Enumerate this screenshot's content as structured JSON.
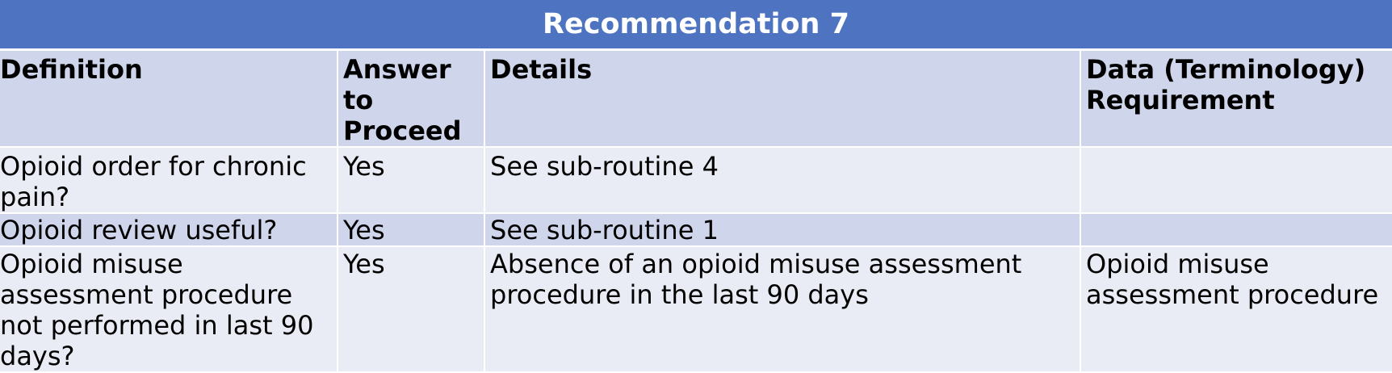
{
  "title": "Recommendation 7",
  "columns": [
    "Definition",
    "Answer to Proceed",
    "Details",
    "Data (Terminology) Requirement"
  ],
  "rows": [
    {
      "definition": "Opioid order for chronic pain?",
      "answer": "Yes",
      "details": "See sub-routine 4",
      "data_requirement": ""
    },
    {
      "definition": "Opioid review useful?",
      "answer": "Yes",
      "details": "See sub-routine 1",
      "data_requirement": ""
    },
    {
      "definition": "Opioid misuse assessment procedure not performed in last 90 days?",
      "answer": "Yes",
      "details": "Absence of an opioid misuse assessment procedure in the last 90 days",
      "data_requirement": "Opioid misuse assessment procedure"
    }
  ],
  "colors": {
    "title_bg": "#4E74C1",
    "header_bg": "#CFD5EA",
    "row_light_bg": "#E9EBF5",
    "row_dark_bg": "#CFD5EA",
    "title_text": "#FFFFFF"
  }
}
